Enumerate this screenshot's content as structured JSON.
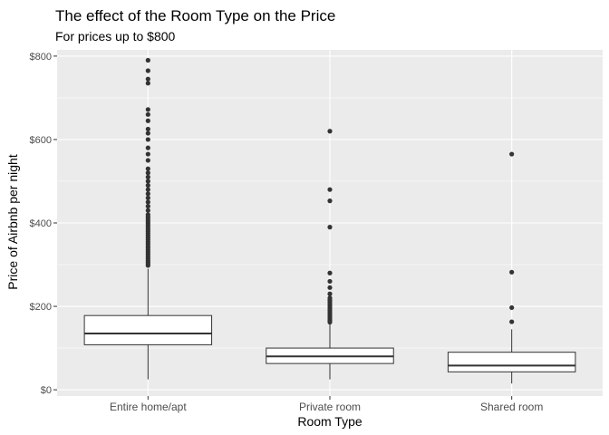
{
  "chart_data": {
    "type": "boxplot",
    "title": "The effect of the Room Type on the Price",
    "subtitle": "For prices up to $800",
    "xlabel": "Room Type",
    "ylabel": "Price of Airbnb per night",
    "ylim": [
      -15,
      815
    ],
    "y_ticks": [
      0,
      200,
      400,
      600,
      800
    ],
    "y_tick_labels": [
      "$0",
      "$200",
      "$400",
      "$600",
      "$800"
    ],
    "grid": true,
    "legend": "none",
    "categories": [
      "Entire home/apt",
      "Private room",
      "Shared room"
    ],
    "boxes": [
      {
        "category": "Entire home/apt",
        "whisker_low": 25,
        "q1": 108,
        "median": 135,
        "q3": 178,
        "whisker_high": 290,
        "outliers": [
          298,
          302,
          306,
          310,
          315,
          320,
          325,
          330,
          335,
          340,
          345,
          350,
          355,
          360,
          365,
          370,
          375,
          380,
          385,
          390,
          395,
          400,
          405,
          410,
          415,
          420,
          430,
          440,
          450,
          460,
          470,
          480,
          490,
          500,
          510,
          520,
          530,
          550,
          565,
          580,
          600,
          615,
          625,
          645,
          660,
          672,
          735,
          745,
          765,
          790
        ]
      },
      {
        "category": "Private room",
        "whisker_low": 25,
        "q1": 63,
        "median": 80,
        "q3": 100,
        "whisker_high": 157,
        "outliers": [
          162,
          166,
          170,
          175,
          180,
          185,
          190,
          195,
          200,
          205,
          210,
          215,
          220,
          230,
          245,
          260,
          280,
          390,
          453,
          480,
          620
        ]
      },
      {
        "category": "Shared room",
        "whisker_low": 15,
        "q1": 43,
        "median": 58,
        "q3": 90,
        "whisker_high": 145,
        "outliers": [
          163,
          197,
          282,
          565
        ]
      }
    ]
  },
  "colors": {
    "panel_background": "#ebebeb",
    "grid_major": "#ffffff",
    "box_fill": "#ffffff",
    "box_line": "#333333",
    "outlier": "#333333"
  }
}
